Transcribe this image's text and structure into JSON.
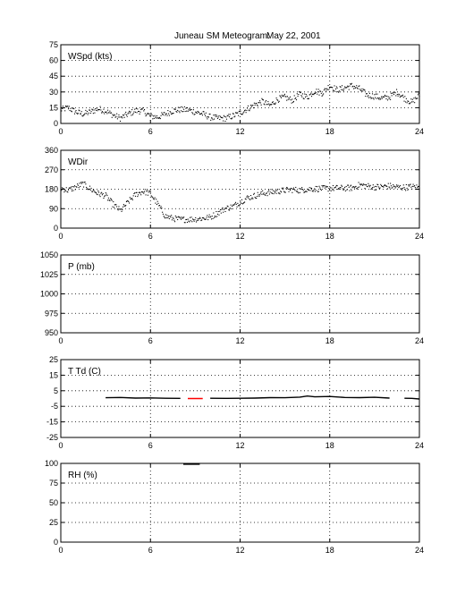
{
  "title": {
    "station": "Juneau SM Meteogram:",
    "date": "May 22, 2001"
  },
  "chart_data": [
    {
      "type": "scatter",
      "label": "WSpd (kts)",
      "ylim": [
        0,
        75
      ],
      "yticks": [
        0,
        15,
        30,
        45,
        60,
        75
      ],
      "xlim": [
        0,
        24
      ],
      "xticks": [
        0,
        6,
        12,
        18,
        24
      ],
      "grid": true,
      "series": [
        {
          "color": "#000000",
          "x": [
            0,
            0.5,
            1,
            1.5,
            2,
            2.5,
            3,
            3.5,
            4,
            4.5,
            5,
            5.5,
            6,
            6.5,
            7,
            7.5,
            8,
            8.5,
            9,
            9.5,
            10,
            10.5,
            11,
            11.5,
            12,
            12.5,
            13,
            13.5,
            14,
            14.5,
            15,
            15.5,
            16,
            16.5,
            17,
            17.5,
            18,
            18.5,
            19,
            19.5,
            20,
            20.5,
            21,
            21.5,
            22,
            22.5,
            23,
            23.5,
            24
          ],
          "y": [
            13,
            15,
            11,
            9,
            11,
            14,
            12,
            8,
            5,
            9,
            12,
            12,
            7,
            6,
            9,
            12,
            13,
            13,
            11,
            9,
            6,
            5,
            5,
            7,
            10,
            14,
            18,
            21,
            17,
            23,
            25,
            22,
            28,
            25,
            31,
            29,
            36,
            32,
            34,
            36,
            33,
            27,
            26,
            24,
            25,
            30,
            24,
            20,
            27
          ],
          "noise": 3
        }
      ]
    },
    {
      "type": "scatter",
      "label": "WDir",
      "ylim": [
        0,
        360
      ],
      "yticks": [
        0,
        90,
        180,
        270,
        360
      ],
      "xlim": [
        0,
        24
      ],
      "xticks": [
        0,
        6,
        12,
        18,
        24
      ],
      "grid": true,
      "series": [
        {
          "color": "#000000",
          "x": [
            0,
            0.5,
            1,
            1.5,
            2,
            2.5,
            3,
            3.5,
            4,
            4.5,
            5,
            5.5,
            6,
            6.5,
            7,
            7.5,
            8,
            8.5,
            9,
            9.5,
            10,
            10.5,
            11,
            11.5,
            12,
            12.5,
            13,
            13.5,
            14,
            14.5,
            15,
            15.5,
            16,
            16.5,
            17,
            17.5,
            18,
            18.5,
            19,
            19.5,
            20,
            20.5,
            21,
            21.5,
            22,
            22.5,
            23,
            23.5,
            24
          ],
          "y": [
            185,
            175,
            190,
            205,
            180,
            160,
            150,
            110,
            80,
            120,
            155,
            170,
            160,
            110,
            55,
            45,
            40,
            40,
            42,
            45,
            50,
            70,
            90,
            100,
            120,
            140,
            150,
            160,
            165,
            170,
            175,
            178,
            175,
            180,
            182,
            183,
            184,
            185,
            185,
            186,
            200,
            195,
            190,
            192,
            195,
            190,
            188,
            192,
            188
          ],
          "noise": 14
        }
      ]
    },
    {
      "type": "line",
      "label": "P (mb)",
      "ylim": [
        950,
        1050
      ],
      "yticks": [
        950,
        975,
        1000,
        1025,
        1050
      ],
      "xlim": [
        0,
        24
      ],
      "xticks": [
        0,
        6,
        12,
        18,
        24
      ],
      "grid": true,
      "series": []
    },
    {
      "type": "line",
      "label": "T Td (C)",
      "ylim": [
        -25,
        25
      ],
      "yticks": [
        -25,
        -15,
        -5,
        5,
        15,
        25
      ],
      "xlim": [
        0,
        24
      ],
      "xticks": [
        0,
        6,
        12,
        18,
        24
      ],
      "grid": true,
      "series": [
        {
          "color": "#000000",
          "x": [
            3,
            4,
            5,
            6,
            7,
            8,
            8.5,
            9.5,
            10,
            11,
            12,
            13,
            14,
            15,
            16,
            16.5,
            17,
            18,
            19,
            20,
            21,
            22,
            22.5,
            23,
            23.5,
            24
          ],
          "y": [
            0.5,
            0.7,
            0.3,
            0.4,
            0.2,
            0.1,
            null,
            null,
            0.2,
            0.1,
            0.2,
            0.3,
            0.6,
            0.5,
            0.9,
            1.6,
            1.1,
            1.3,
            0.7,
            0.6,
            0.8,
            0.3,
            null,
            0.2,
            0.1,
            -0.3
          ]
        },
        {
          "color": "#ff0000",
          "x": [
            8.5,
            9.5
          ],
          "y": [
            0,
            0
          ]
        }
      ]
    },
    {
      "type": "line",
      "label": "RH (%)",
      "ylim": [
        0,
        100
      ],
      "yticks": [
        0,
        25,
        50,
        75,
        100
      ],
      "xlim": [
        0,
        24
      ],
      "xticks": [
        0,
        6,
        12,
        18,
        24
      ],
      "grid": true,
      "series": [
        {
          "color": "#000000",
          "x": [
            8.2,
            9.3
          ],
          "y": [
            99,
            99
          ]
        }
      ]
    }
  ]
}
